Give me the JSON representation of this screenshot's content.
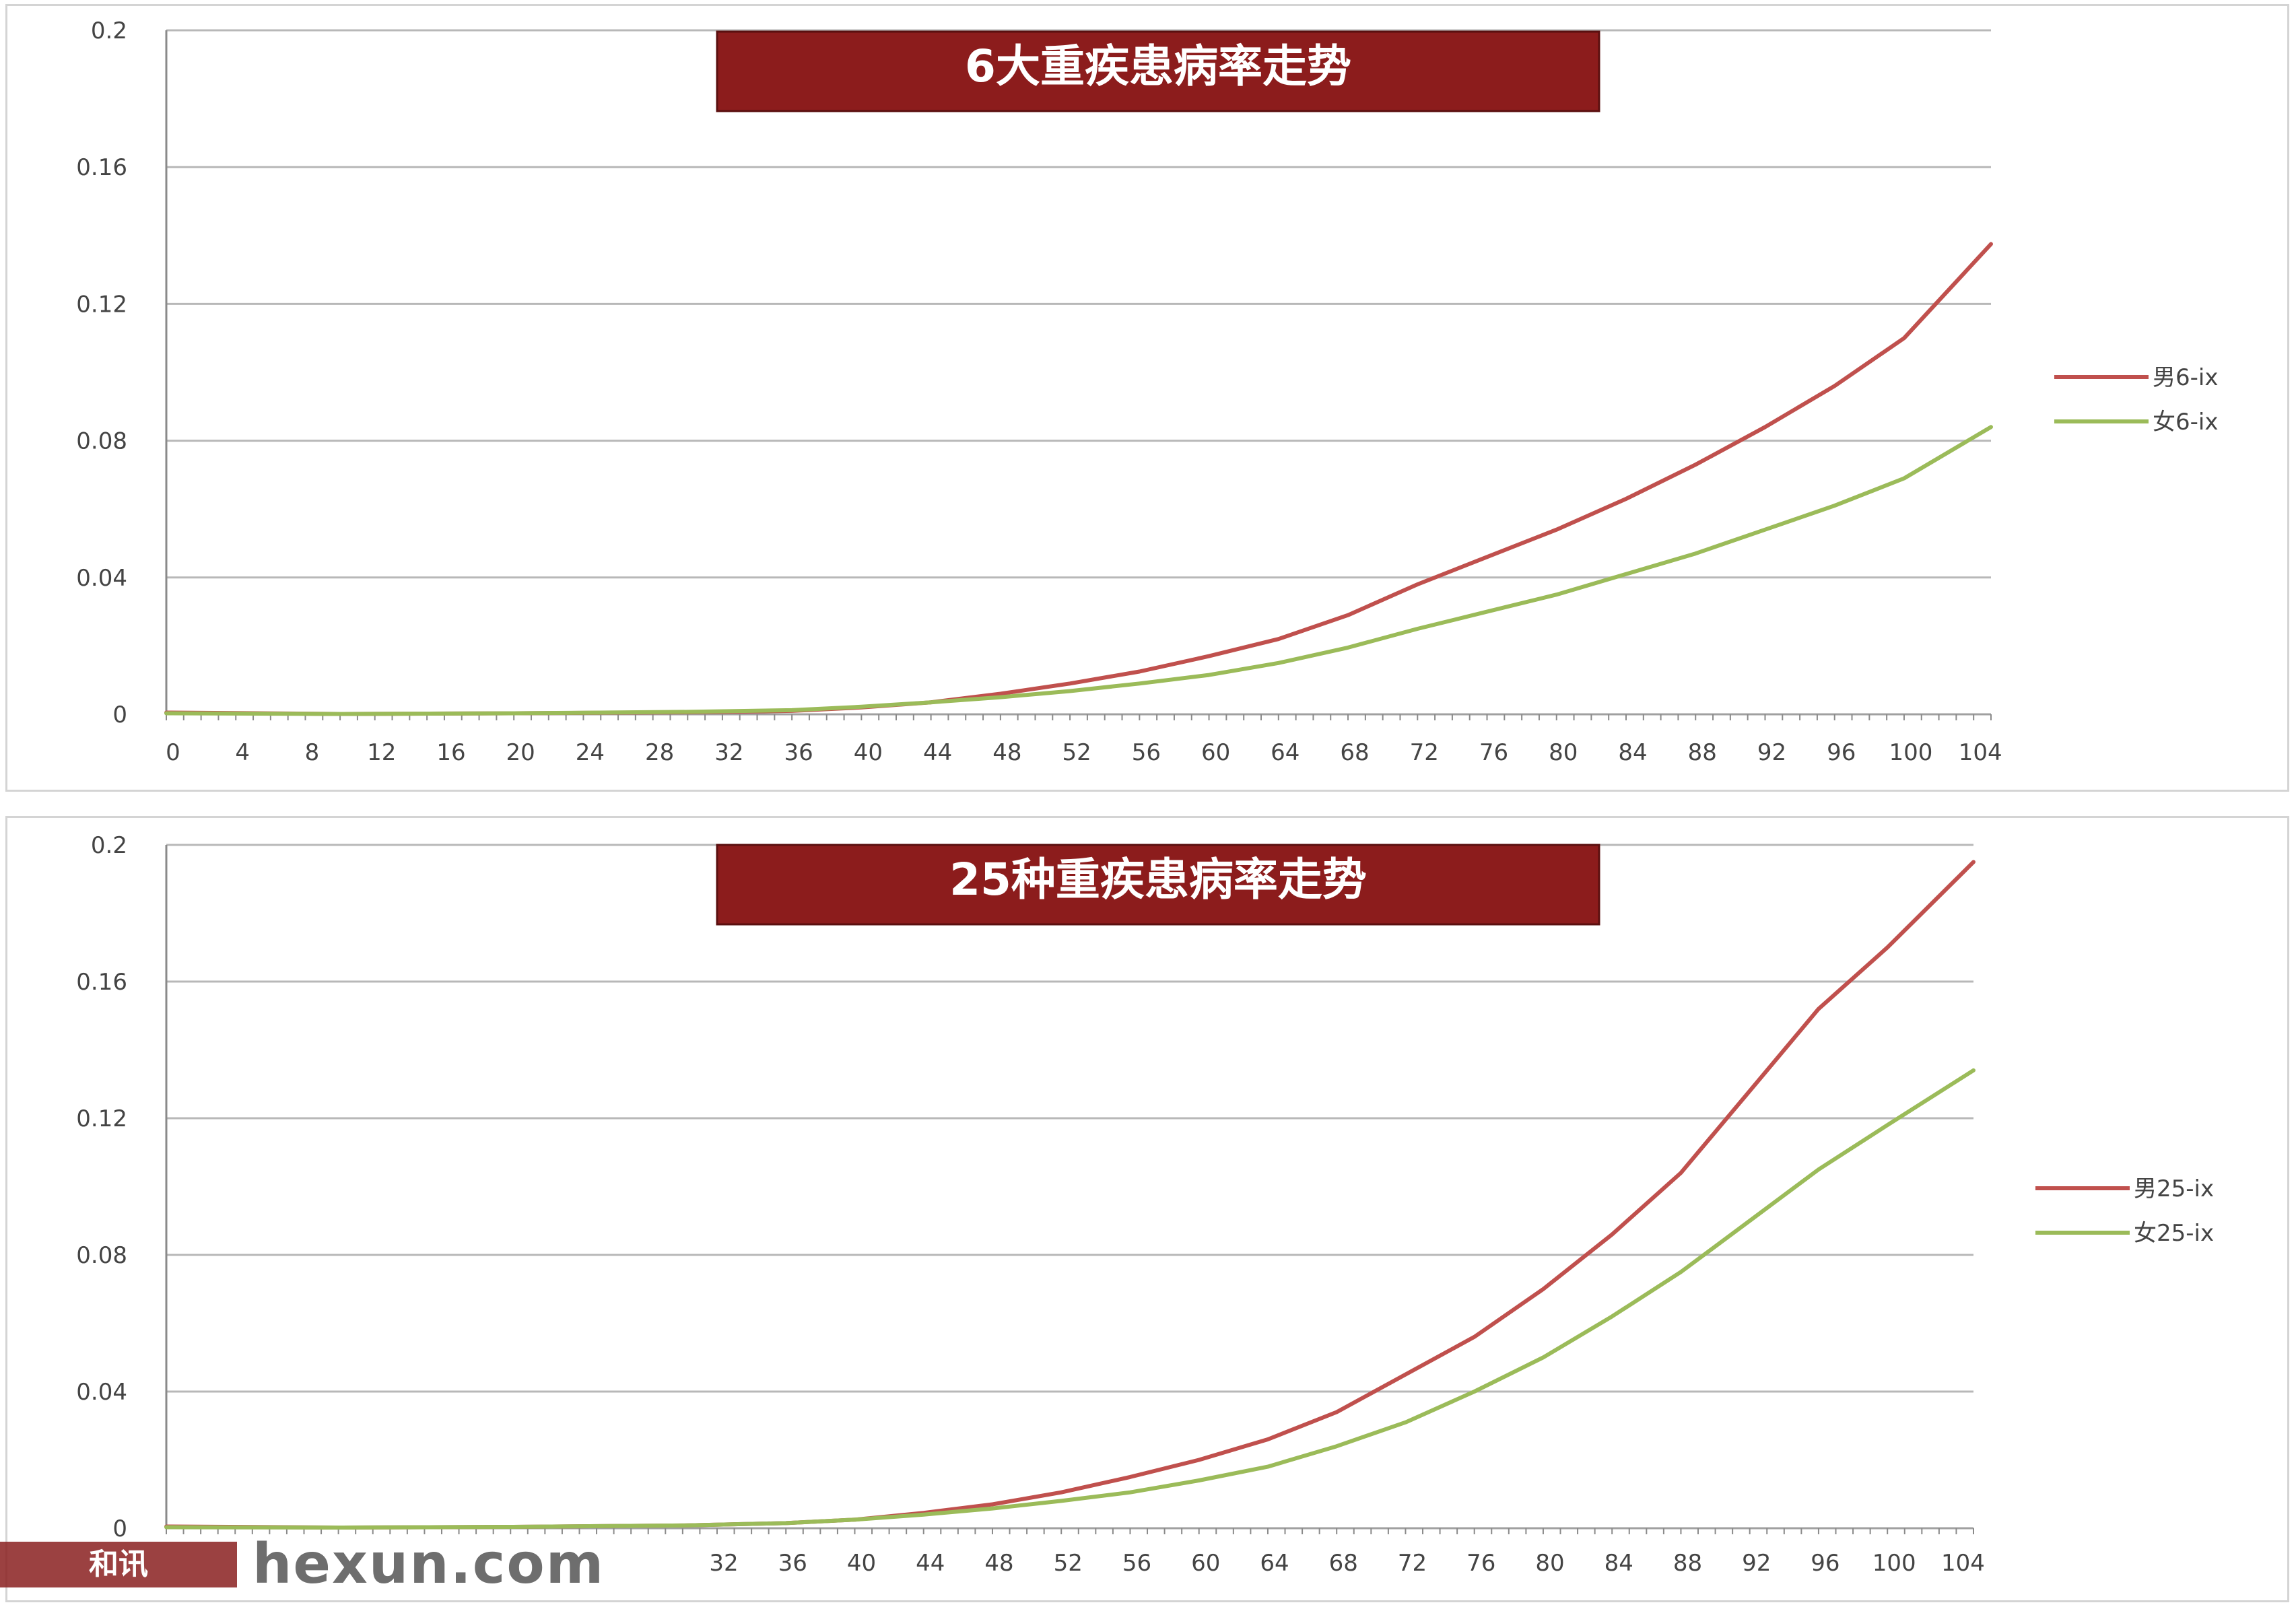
{
  "chart_data": [
    {
      "type": "line",
      "title": "6大重疾患病率走势",
      "x_tick_labels": [
        "0",
        "4",
        "8",
        "12",
        "16",
        "20",
        "24",
        "28",
        "32",
        "36",
        "40",
        "44",
        "48",
        "52",
        "56",
        "60",
        "64",
        "68",
        "72",
        "76",
        "80",
        "84",
        "88",
        "92",
        "96",
        "100",
        "104"
      ],
      "y_tick_labels": [
        "0",
        "0.04",
        "0.08",
        "0.12",
        "0.16",
        "0.2"
      ],
      "ylim": [
        0,
        0.2
      ],
      "xlim": [
        0,
        105
      ],
      "grid": "horizontal",
      "legend_position": "right",
      "x": [
        0,
        10,
        20,
        30,
        36,
        40,
        44,
        48,
        52,
        56,
        60,
        64,
        68,
        72,
        76,
        80,
        84,
        88,
        92,
        96,
        100,
        105
      ],
      "series": [
        {
          "name": "男6-ix",
          "color": "#c0504d",
          "values": [
            0.0005,
            0.0001,
            0.0003,
            0.0006,
            0.001,
            0.002,
            0.0035,
            0.006,
            0.009,
            0.0125,
            0.017,
            0.022,
            0.029,
            0.038,
            0.046,
            0.054,
            0.063,
            0.073,
            0.084,
            0.096,
            0.11,
            0.1375
          ]
        },
        {
          "name": "女6-ix",
          "color": "#9bbb59",
          "values": [
            0.0003,
            0.0001,
            0.0003,
            0.0007,
            0.0012,
            0.0022,
            0.0035,
            0.005,
            0.0068,
            0.009,
            0.0115,
            0.015,
            0.0195,
            0.025,
            0.03,
            0.035,
            0.041,
            0.047,
            0.054,
            0.061,
            0.069,
            0.084
          ]
        }
      ]
    },
    {
      "type": "line",
      "title": "25种重疾患病率走势",
      "x_tick_labels": [
        "32",
        "36",
        "40",
        "44",
        "48",
        "52",
        "56",
        "60",
        "64",
        "68",
        "72",
        "76",
        "80",
        "84",
        "88",
        "92",
        "96",
        "100",
        "104"
      ],
      "y_tick_labels": [
        "0",
        "0.04",
        "0.08",
        "0.12",
        "0.16",
        "0.2"
      ],
      "ylim": [
        0,
        0.2
      ],
      "xlim": [
        0,
        105
      ],
      "grid": "horizontal",
      "legend_position": "right",
      "x": [
        0,
        10,
        20,
        30,
        36,
        40,
        44,
        48,
        52,
        56,
        60,
        64,
        68,
        72,
        76,
        80,
        84,
        88,
        92,
        96,
        100,
        105
      ],
      "series": [
        {
          "name": "男25-ix",
          "color": "#c0504d",
          "values": [
            0.0005,
            0.0002,
            0.0004,
            0.0008,
            0.0015,
            0.0025,
            0.0045,
            0.007,
            0.0105,
            0.015,
            0.02,
            0.026,
            0.034,
            0.045,
            0.056,
            0.07,
            0.086,
            0.104,
            0.128,
            0.152,
            0.17,
            0.195
          ]
        },
        {
          "name": "女25-ix",
          "color": "#9bbb59",
          "values": [
            0.0003,
            0.0002,
            0.0004,
            0.0008,
            0.0015,
            0.0025,
            0.004,
            0.0058,
            0.008,
            0.0105,
            0.014,
            0.018,
            0.024,
            0.031,
            0.04,
            0.05,
            0.062,
            0.075,
            0.09,
            0.105,
            0.118,
            0.134
          ]
        }
      ]
    }
  ],
  "watermark": {
    "logo_text": "和讯",
    "site_text": "hexun.com"
  }
}
